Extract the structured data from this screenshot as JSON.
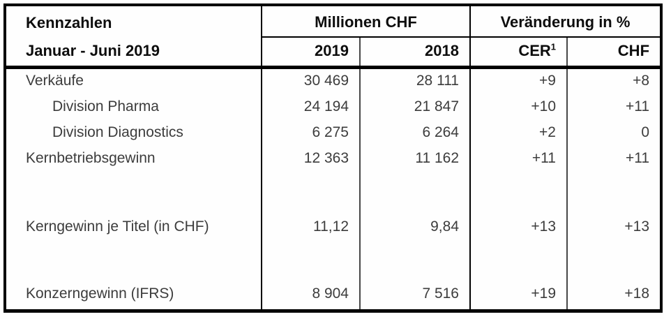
{
  "table": {
    "header": {
      "kennzahlen": "Kennzahlen",
      "period": "Januar - Juni 2019",
      "group_millionen": "Millionen CHF",
      "group_veraenderung": "Veränderung in %",
      "col_2019": "2019",
      "col_2018": "2018",
      "col_cer": "CER",
      "col_cer_sup": "1",
      "col_chf": "CHF"
    },
    "rows": [
      {
        "label": "Verkäufe",
        "y2019": "30 469",
        "y2018": "28 111",
        "cer": "+9",
        "chf": "+8"
      },
      {
        "label": "Division Pharma",
        "y2019": "24 194",
        "y2018": "21 847",
        "cer": "+10",
        "chf": "+11"
      },
      {
        "label": "Division Diagnostics",
        "y2019": "6 275",
        "y2018": "6 264",
        "cer": "+2",
        "chf": "0"
      },
      {
        "label": "Kernbetriebsgewinn",
        "y2019": "12 363",
        "y2018": "11 162",
        "cer": "+11",
        "chf": "+11"
      },
      {
        "label": "Kerngewinn je Titel (in CHF)",
        "y2019": "11,12",
        "y2018": "9,84",
        "cer": "+13",
        "chf": "+13"
      },
      {
        "label": "Konzerngewinn (IFRS)",
        "y2019": "8 904",
        "y2018": "7 516",
        "cer": "+19",
        "chf": "+18"
      }
    ],
    "colors": {
      "border": "#000000",
      "inner_divider": "#474747",
      "header_text": "#0d0d0d",
      "body_text": "#3c3c3c"
    }
  }
}
